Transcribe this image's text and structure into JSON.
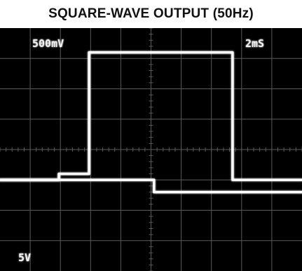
{
  "title": "SQUARE-WAVE OUTPUT (50Hz)",
  "scope": {
    "volts_per_div": "500mV",
    "time_per_div": "2mS",
    "ch2_volts_per_div": "5V"
  },
  "colors": {
    "background": "#000000",
    "graticule": "#5a5a5a",
    "trace": "#ffffff"
  },
  "chart_data": {
    "type": "line",
    "title": "SQUARE-WAVE OUTPUT (50Hz)",
    "grid": true,
    "divisions": {
      "x": 10,
      "y": 8
    },
    "x": {
      "unit": "ms",
      "per_div": 2,
      "range": [
        0,
        20
      ]
    },
    "series": [
      {
        "channel": 1,
        "scale": "500mV/div",
        "x": [
          0,
          3.9,
          3.9,
          5.9,
          5.9,
          15.4,
          15.4,
          20
        ],
        "y": [
          -0.5,
          -0.5,
          -0.4,
          -0.4,
          1.6,
          1.6,
          -0.5,
          -0.5
        ],
        "ylim": [
          -2,
          2
        ]
      },
      {
        "channel": 2,
        "scale": "5V/div",
        "x": [
          0,
          10.2,
          10.2,
          20
        ],
        "y": [
          -2.5,
          -2.5,
          -3.5,
          -3.5
        ],
        "ylim": [
          -10,
          10
        ]
      }
    ]
  }
}
